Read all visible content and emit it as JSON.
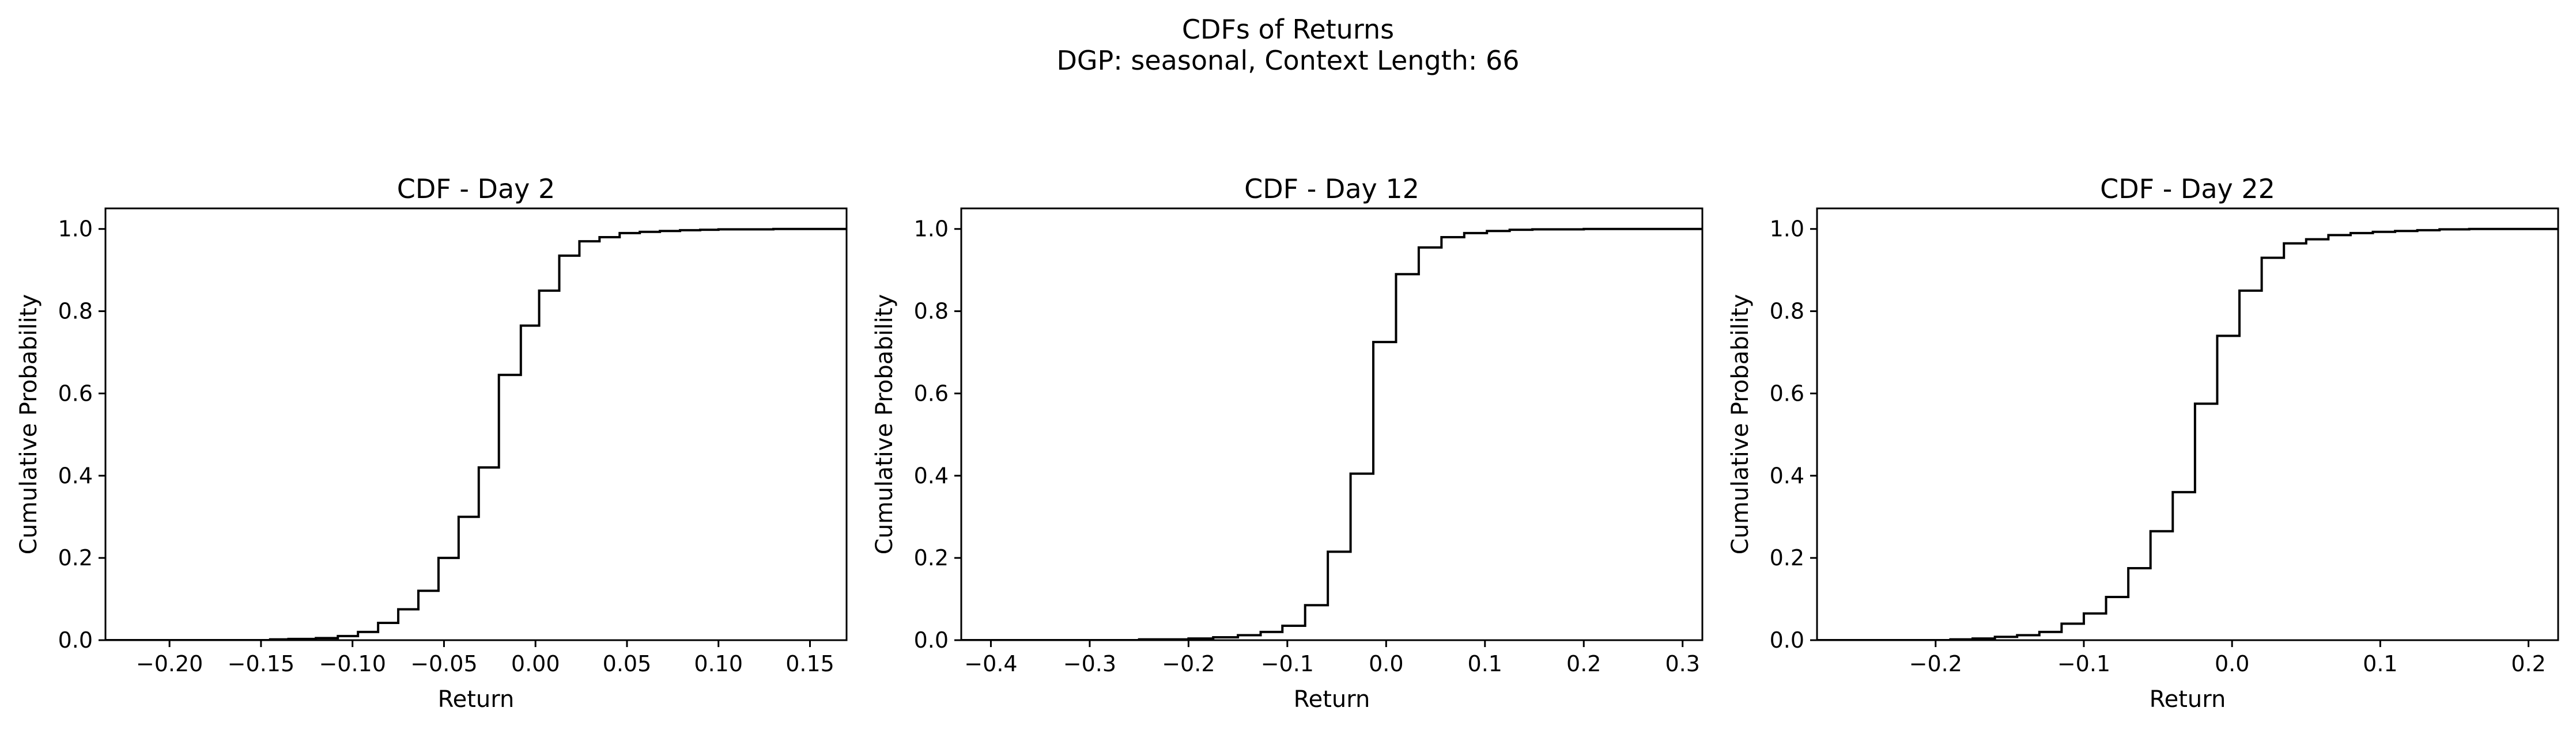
{
  "figure": {
    "title": "CDFs of Returns",
    "subtitle": "DGP: seasonal, Context Length: 66"
  },
  "chart_data": [
    {
      "type": "line",
      "title": "CDF - Day 2",
      "xlabel": "Return",
      "ylabel": "Cumulative Probability",
      "xlim": [
        -0.235,
        0.17
      ],
      "ylim": [
        0.0,
        1.05
      ],
      "xticks": [
        -0.2,
        -0.15,
        -0.1,
        -0.05,
        0.0,
        0.05,
        0.1,
        0.15
      ],
      "xtick_labels": [
        "−0.20",
        "−0.15",
        "−0.10",
        "−0.05",
        "0.00",
        "0.05",
        "0.10",
        "0.15"
      ],
      "yticks": [
        0.0,
        0.2,
        0.4,
        0.6,
        0.8,
        1.0
      ],
      "ytick_labels": [
        "0.0",
        "0.2",
        "0.4",
        "0.6",
        "0.8",
        "1.0"
      ],
      "grid": false,
      "series": [
        {
          "color": "#000000",
          "x": [
            -0.235,
            -0.145,
            -0.135,
            -0.12,
            -0.108,
            -0.097,
            -0.086,
            -0.075,
            -0.064,
            -0.053,
            -0.042,
            -0.031,
            -0.02,
            -0.008,
            0.002,
            0.013,
            0.024,
            0.035,
            0.046,
            0.057,
            0.068,
            0.079,
            0.09,
            0.1,
            0.11,
            0.13,
            0.15,
            0.17
          ],
          "y": [
            0.0,
            0.002,
            0.003,
            0.005,
            0.01,
            0.02,
            0.042,
            0.075,
            0.12,
            0.2,
            0.3,
            0.42,
            0.645,
            0.765,
            0.85,
            0.935,
            0.97,
            0.98,
            0.99,
            0.993,
            0.995,
            0.997,
            0.998,
            0.999,
            0.999,
            1.0,
            1.0,
            1.0
          ]
        }
      ]
    },
    {
      "type": "line",
      "title": "CDF - Day 12",
      "xlabel": "Return",
      "ylabel": "Cumulative Probability",
      "xlim": [
        -0.43,
        0.32
      ],
      "ylim": [
        0.0,
        1.05
      ],
      "xticks": [
        -0.4,
        -0.3,
        -0.2,
        -0.1,
        0.0,
        0.1,
        0.2,
        0.3
      ],
      "xtick_labels": [
        "−0.4",
        "−0.3",
        "−0.2",
        "−0.1",
        "0.0",
        "0.1",
        "0.2",
        "0.3"
      ],
      "yticks": [
        0.0,
        0.2,
        0.4,
        0.6,
        0.8,
        1.0
      ],
      "ytick_labels": [
        "0.0",
        "0.2",
        "0.4",
        "0.6",
        "0.8",
        "1.0"
      ],
      "grid": false,
      "series": [
        {
          "color": "#000000",
          "x": [
            -0.43,
            -0.25,
            -0.2,
            -0.175,
            -0.15,
            -0.127,
            -0.105,
            -0.082,
            -0.059,
            -0.036,
            -0.013,
            0.01,
            0.033,
            0.056,
            0.079,
            0.102,
            0.125,
            0.148,
            0.2,
            0.32
          ],
          "y": [
            0.0,
            0.002,
            0.004,
            0.007,
            0.012,
            0.02,
            0.035,
            0.085,
            0.215,
            0.405,
            0.725,
            0.89,
            0.955,
            0.98,
            0.99,
            0.995,
            0.998,
            0.999,
            1.0,
            1.0
          ]
        }
      ]
    },
    {
      "type": "line",
      "title": "CDF - Day 22",
      "xlabel": "Return",
      "ylabel": "Cumulative Probability",
      "xlim": [
        -0.28,
        0.22
      ],
      "ylim": [
        0.0,
        1.05
      ],
      "xticks": [
        -0.2,
        -0.1,
        0.0,
        0.1,
        0.2
      ],
      "xtick_labels": [
        "−0.2",
        "−0.1",
        "0.0",
        "0.1",
        "0.2"
      ],
      "yticks": [
        0.0,
        0.2,
        0.4,
        0.6,
        0.8,
        1.0
      ],
      "ytick_labels": [
        "0.0",
        "0.2",
        "0.4",
        "0.6",
        "0.8",
        "1.0"
      ],
      "grid": false,
      "series": [
        {
          "color": "#000000",
          "x": [
            -0.28,
            -0.19,
            -0.175,
            -0.16,
            -0.145,
            -0.13,
            -0.115,
            -0.1,
            -0.085,
            -0.07,
            -0.055,
            -0.04,
            -0.025,
            -0.01,
            0.005,
            0.02,
            0.035,
            0.05,
            0.065,
            0.08,
            0.095,
            0.11,
            0.125,
            0.14,
            0.16,
            0.22
          ],
          "y": [
            0.0,
            0.002,
            0.004,
            0.008,
            0.012,
            0.02,
            0.04,
            0.065,
            0.105,
            0.175,
            0.265,
            0.36,
            0.575,
            0.74,
            0.85,
            0.93,
            0.965,
            0.975,
            0.985,
            0.99,
            0.993,
            0.995,
            0.997,
            0.999,
            1.0,
            1.0
          ]
        }
      ]
    }
  ]
}
